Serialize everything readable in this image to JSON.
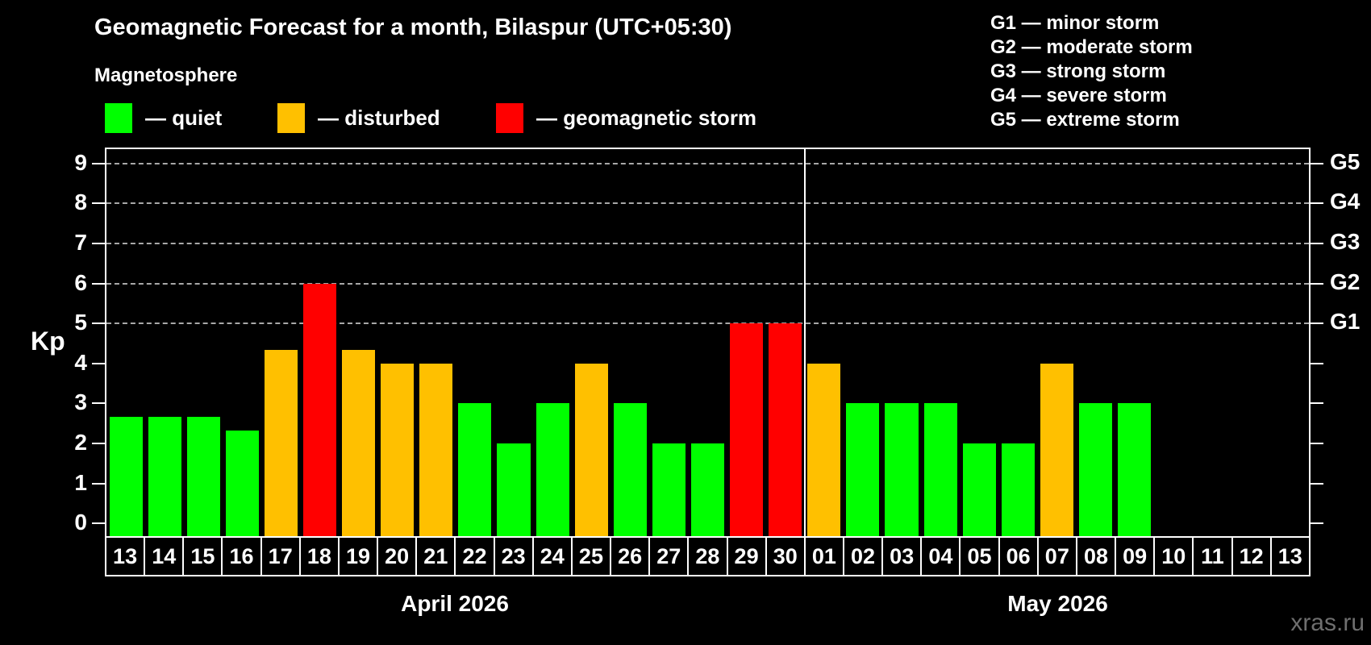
{
  "header": {
    "title": "Geomagnetic Forecast for a month, Bilaspur (UTC+05:30)",
    "subtitle": "Magnetosphere"
  },
  "legend": {
    "items": [
      {
        "name": "quiet",
        "label": "— quiet",
        "color": "#00ff00"
      },
      {
        "name": "disturbed",
        "label": "— disturbed",
        "color": "#ffc000"
      },
      {
        "name": "storm",
        "label": "— geomagnetic storm",
        "color": "#ff0000"
      }
    ]
  },
  "g_legend": {
    "items": [
      "G1 — minor storm",
      "G2 — moderate storm",
      "G3 — strong storm",
      "G4 — severe storm",
      "G5 — extreme storm"
    ]
  },
  "watermark": "xras.ru",
  "chart_data": {
    "type": "bar",
    "title": "Geomagnetic Forecast for a month, Bilaspur (UTC+05:30)",
    "xlabel": "",
    "ylabel": "Kp",
    "ylim": [
      -0.36,
      9.4
    ],
    "yticks": [
      0,
      1,
      2,
      3,
      4,
      5,
      6,
      7,
      8,
      9
    ],
    "gridlines_kp": [
      5,
      6,
      7,
      8,
      9
    ],
    "grid": "dashed horizontal at Kp 5-9",
    "legend_position": "top",
    "right_axis_labels": [
      {
        "kp": 5,
        "text": "G1"
      },
      {
        "kp": 6,
        "text": "G2"
      },
      {
        "kp": 7,
        "text": "G3"
      },
      {
        "kp": 8,
        "text": "G4"
      },
      {
        "kp": 9,
        "text": "G5"
      }
    ],
    "level_colors": {
      "quiet": "#00ff00",
      "disturbed": "#ffc000",
      "storm": "#ff0000"
    },
    "months": [
      {
        "label": "April 2026",
        "days": [
          {
            "day": "13",
            "kp": 2.67,
            "level": "quiet"
          },
          {
            "day": "14",
            "kp": 2.67,
            "level": "quiet"
          },
          {
            "day": "15",
            "kp": 2.67,
            "level": "quiet"
          },
          {
            "day": "16",
            "kp": 2.33,
            "level": "quiet"
          },
          {
            "day": "17",
            "kp": 4.33,
            "level": "disturbed"
          },
          {
            "day": "18",
            "kp": 6.0,
            "level": "storm"
          },
          {
            "day": "19",
            "kp": 4.33,
            "level": "disturbed"
          },
          {
            "day": "20",
            "kp": 4.0,
            "level": "disturbed"
          },
          {
            "day": "21",
            "kp": 4.0,
            "level": "disturbed"
          },
          {
            "day": "22",
            "kp": 3.0,
            "level": "quiet"
          },
          {
            "day": "23",
            "kp": 2.0,
            "level": "quiet"
          },
          {
            "day": "24",
            "kp": 3.0,
            "level": "quiet"
          },
          {
            "day": "25",
            "kp": 4.0,
            "level": "disturbed"
          },
          {
            "day": "26",
            "kp": 3.0,
            "level": "quiet"
          },
          {
            "day": "27",
            "kp": 2.0,
            "level": "quiet"
          },
          {
            "day": "28",
            "kp": 2.0,
            "level": "quiet"
          },
          {
            "day": "29",
            "kp": 5.0,
            "level": "storm"
          },
          {
            "day": "30",
            "kp": 5.0,
            "level": "storm"
          }
        ]
      },
      {
        "label": "May 2026",
        "days": [
          {
            "day": "01",
            "kp": 4.0,
            "level": "disturbed"
          },
          {
            "day": "02",
            "kp": 3.0,
            "level": "quiet"
          },
          {
            "day": "03",
            "kp": 3.0,
            "level": "quiet"
          },
          {
            "day": "04",
            "kp": 3.0,
            "level": "quiet"
          },
          {
            "day": "05",
            "kp": 2.0,
            "level": "quiet"
          },
          {
            "day": "06",
            "kp": 2.0,
            "level": "quiet"
          },
          {
            "day": "07",
            "kp": 4.0,
            "level": "disturbed"
          },
          {
            "day": "08",
            "kp": 3.0,
            "level": "quiet"
          },
          {
            "day": "09",
            "kp": 3.0,
            "level": "quiet"
          },
          {
            "day": "10",
            "kp": null,
            "level": null
          },
          {
            "day": "11",
            "kp": null,
            "level": null
          },
          {
            "day": "12",
            "kp": null,
            "level": null
          },
          {
            "day": "13",
            "kp": null,
            "level": null
          }
        ]
      }
    ]
  }
}
